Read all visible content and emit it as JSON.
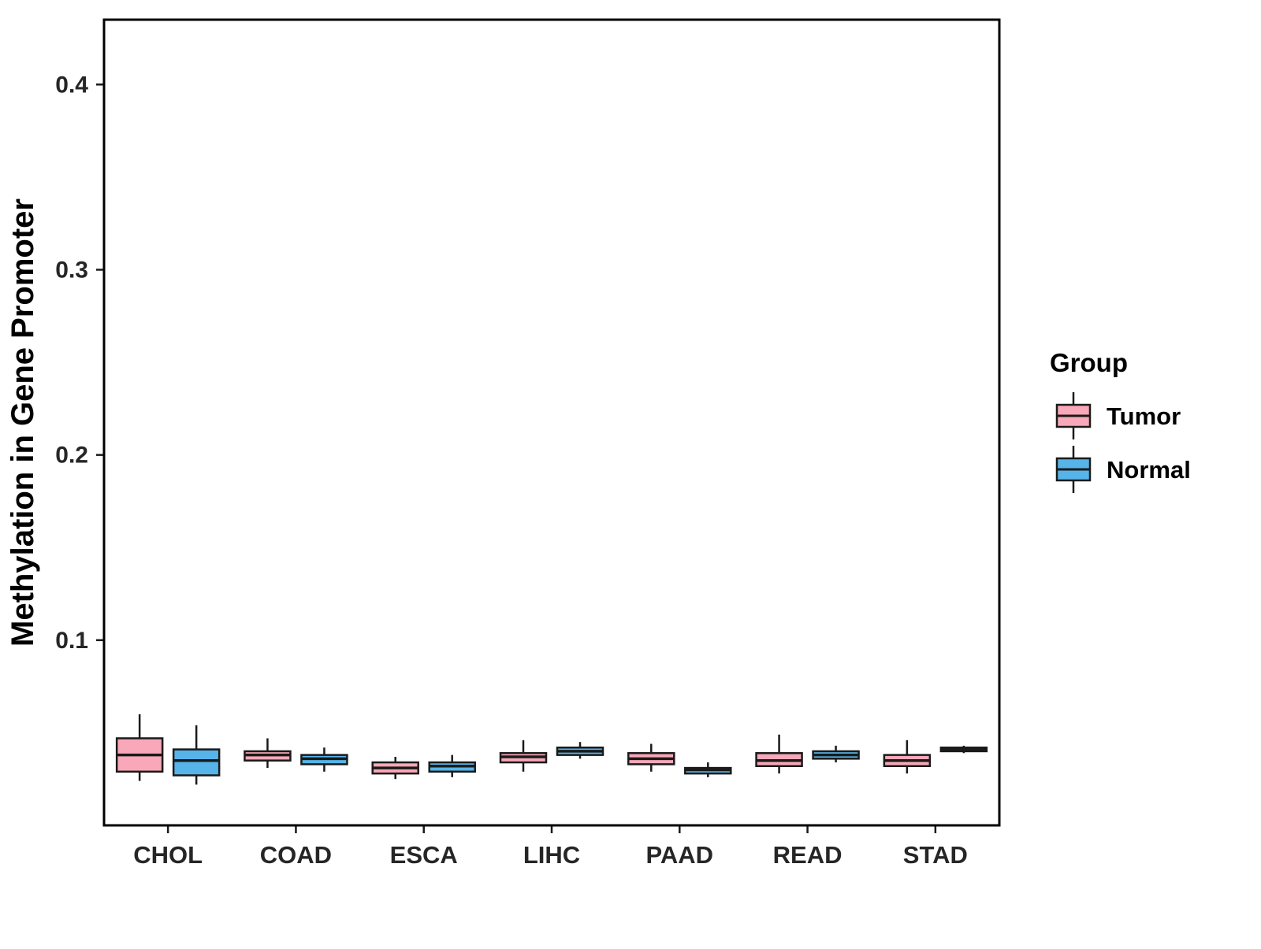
{
  "chart_data": {
    "type": "boxplot",
    "title": "",
    "xlabel": "",
    "ylabel": "Methylation in Gene Promoter",
    "legend_title": "Group",
    "legend_position": "right",
    "grid": false,
    "ylim": [
      0,
      0.435
    ],
    "y_tick_values": [
      0.1,
      0.2,
      0.3,
      0.4
    ],
    "y_tick_labels": [
      "0.1",
      "0.2",
      "0.3",
      "0.4"
    ],
    "categories": [
      "CHOL",
      "COAD",
      "ESCA",
      "LIHC",
      "PAAD",
      "READ",
      "STAD"
    ],
    "groups": [
      {
        "name": "Tumor",
        "color": "#F8A8B8"
      },
      {
        "name": "Normal",
        "color": "#56B4E9"
      }
    ],
    "outline_color": "#1A1A1A",
    "series": [
      {
        "name": "Tumor",
        "boxes": [
          {
            "category": "CHOL",
            "low": 0.024,
            "q1": 0.029,
            "median": 0.038,
            "q3": 0.047,
            "high": 0.06
          },
          {
            "category": "COAD",
            "low": 0.031,
            "q1": 0.035,
            "median": 0.038,
            "q3": 0.04,
            "high": 0.047
          },
          {
            "category": "ESCA",
            "low": 0.025,
            "q1": 0.028,
            "median": 0.031,
            "q3": 0.034,
            "high": 0.037
          },
          {
            "category": "LIHC",
            "low": 0.029,
            "q1": 0.034,
            "median": 0.037,
            "q3": 0.039,
            "high": 0.046
          },
          {
            "category": "PAAD",
            "low": 0.029,
            "q1": 0.033,
            "median": 0.036,
            "q3": 0.039,
            "high": 0.044
          },
          {
            "category": "READ",
            "low": 0.028,
            "q1": 0.032,
            "median": 0.035,
            "q3": 0.039,
            "high": 0.049
          },
          {
            "category": "STAD",
            "low": 0.028,
            "q1": 0.032,
            "median": 0.035,
            "q3": 0.038,
            "high": 0.046
          }
        ]
      },
      {
        "name": "Normal",
        "boxes": [
          {
            "category": "CHOL",
            "low": 0.022,
            "q1": 0.027,
            "median": 0.035,
            "q3": 0.041,
            "high": 0.054
          },
          {
            "category": "COAD",
            "low": 0.029,
            "q1": 0.033,
            "median": 0.036,
            "q3": 0.038,
            "high": 0.042
          },
          {
            "category": "ESCA",
            "low": 0.026,
            "q1": 0.029,
            "median": 0.032,
            "q3": 0.034,
            "high": 0.038
          },
          {
            "category": "LIHC",
            "low": 0.036,
            "q1": 0.038,
            "median": 0.04,
            "q3": 0.042,
            "high": 0.045
          },
          {
            "category": "PAAD",
            "low": 0.026,
            "q1": 0.028,
            "median": 0.03,
            "q3": 0.031,
            "high": 0.034
          },
          {
            "category": "READ",
            "low": 0.034,
            "q1": 0.036,
            "median": 0.038,
            "q3": 0.04,
            "high": 0.043
          },
          {
            "category": "STAD",
            "low": 0.039,
            "q1": 0.04,
            "median": 0.041,
            "q3": 0.042,
            "high": 0.043
          }
        ]
      }
    ]
  }
}
